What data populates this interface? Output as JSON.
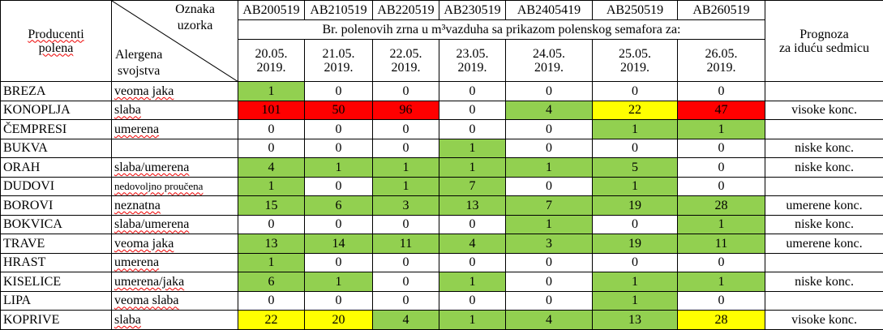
{
  "header": {
    "producers_label": "Producenti\npolena",
    "sample_label": "Oznaka\nuzorka",
    "allergen_label": "Alergena\nsvojstva",
    "sample_codes": [
      "AB200519",
      "AB210519",
      "AB220519",
      "AB230519",
      "AB2405419",
      "AB250519",
      "AB260519"
    ],
    "subtitle": "Br. polenovih zrna u m³vazduha sa prikazom polenskog semafora za:",
    "dates": [
      "20.05.\n2019.",
      "21.05.\n2019.",
      "22.05.\n2019.",
      "23.05.\n2019.",
      "24.05.\n2019.",
      "25.05.\n2019.",
      "26.05.\n2019."
    ],
    "forecast_label": "Prognoza\nza iduću sedmicu"
  },
  "rows": [
    {
      "producer": "BREZA",
      "allergen": "veoma jaka",
      "values": [
        1,
        0,
        0,
        0,
        0,
        0,
        0
      ],
      "colors": [
        "#92d050",
        "#ffffff",
        "#ffffff",
        "#ffffff",
        "#ffffff",
        "#ffffff",
        "#ffffff"
      ],
      "forecast": null
    },
    {
      "producer": "KONOPLJA",
      "allergen": "slaba",
      "values": [
        101,
        50,
        96,
        0,
        4,
        22,
        47
      ],
      "colors": [
        "#ff0000",
        "#ff0000",
        "#ff0000",
        "#ffffff",
        "#92d050",
        "#ffff00",
        "#ff0000"
      ],
      "forecast": "visoke konc."
    },
    {
      "producer": "ČEMPRESI",
      "allergen": "umerena",
      "values": [
        0,
        0,
        0,
        0,
        0,
        1,
        1
      ],
      "colors": [
        "#ffffff",
        "#ffffff",
        "#ffffff",
        "#ffffff",
        "#ffffff",
        "#92d050",
        "#92d050"
      ],
      "forecast": null
    },
    {
      "producer": "BUKVA",
      "allergen": null,
      "values": [
        0,
        0,
        0,
        1,
        0,
        0,
        0
      ],
      "colors": [
        "#ffffff",
        "#ffffff",
        "#ffffff",
        "#92d050",
        "#ffffff",
        "#ffffff",
        "#ffffff"
      ],
      "forecast": "niske konc."
    },
    {
      "producer": "ORAH",
      "allergen": "slaba/umerena",
      "values": [
        4,
        1,
        1,
        1,
        1,
        5,
        0
      ],
      "colors": [
        "#92d050",
        "#92d050",
        "#92d050",
        "#92d050",
        "#92d050",
        "#92d050",
        "#ffffff"
      ],
      "forecast": "niske konc."
    },
    {
      "producer": "DUDOVI",
      "allergen": "nedovoljno proučena",
      "values": [
        1,
        0,
        1,
        7,
        0,
        1,
        0
      ],
      "colors": [
        "#92d050",
        "#ffffff",
        "#92d050",
        "#92d050",
        "#ffffff",
        "#92d050",
        "#ffffff"
      ],
      "forecast": null
    },
    {
      "producer": "BOROVI",
      "allergen": "neznatna",
      "values": [
        15,
        6,
        3,
        13,
        7,
        19,
        28
      ],
      "colors": [
        "#92d050",
        "#92d050",
        "#92d050",
        "#92d050",
        "#92d050",
        "#92d050",
        "#92d050"
      ],
      "forecast": "umerene konc."
    },
    {
      "producer": "BOKVICA",
      "allergen": "slaba/umerena",
      "values": [
        0,
        0,
        0,
        0,
        1,
        0,
        1
      ],
      "colors": [
        "#ffffff",
        "#ffffff",
        "#ffffff",
        "#ffffff",
        "#92d050",
        "#ffffff",
        "#92d050"
      ],
      "forecast": "niske konc."
    },
    {
      "producer": "TRAVE",
      "allergen": "veoma jaka",
      "values": [
        13,
        14,
        11,
        4,
        3,
        19,
        11
      ],
      "colors": [
        "#92d050",
        "#92d050",
        "#92d050",
        "#92d050",
        "#92d050",
        "#92d050",
        "#92d050"
      ],
      "forecast": "umerene konc."
    },
    {
      "producer": "HRAST",
      "allergen": "umerena",
      "values": [
        1,
        0,
        0,
        0,
        0,
        0,
        0
      ],
      "colors": [
        "#92d050",
        "#ffffff",
        "#ffffff",
        "#ffffff",
        "#ffffff",
        "#ffffff",
        "#ffffff"
      ],
      "forecast": null
    },
    {
      "producer": "KISELICE",
      "allergen": "umerena/jaka",
      "values": [
        6,
        1,
        0,
        1,
        0,
        1,
        1
      ],
      "colors": [
        "#92d050",
        "#92d050",
        "#ffffff",
        "#92d050",
        "#ffffff",
        "#92d050",
        "#92d050"
      ],
      "forecast": "niske konc."
    },
    {
      "producer": "LIPA",
      "allergen": "veoma slaba",
      "values": [
        0,
        0,
        0,
        0,
        0,
        1,
        0
      ],
      "colors": [
        "#ffffff",
        "#ffffff",
        "#ffffff",
        "#ffffff",
        "#ffffff",
        "#92d050",
        "#ffffff"
      ],
      "forecast": null
    },
    {
      "producer": "KOPRIVE",
      "allergen": "slaba",
      "values": [
        22,
        20,
        4,
        1,
        4,
        13,
        28
      ],
      "colors": [
        "#ffff00",
        "#ffff00",
        "#92d050",
        "#92d050",
        "#92d050",
        "#92d050",
        "#ffff00"
      ],
      "forecast": "visoke konc."
    }
  ]
}
